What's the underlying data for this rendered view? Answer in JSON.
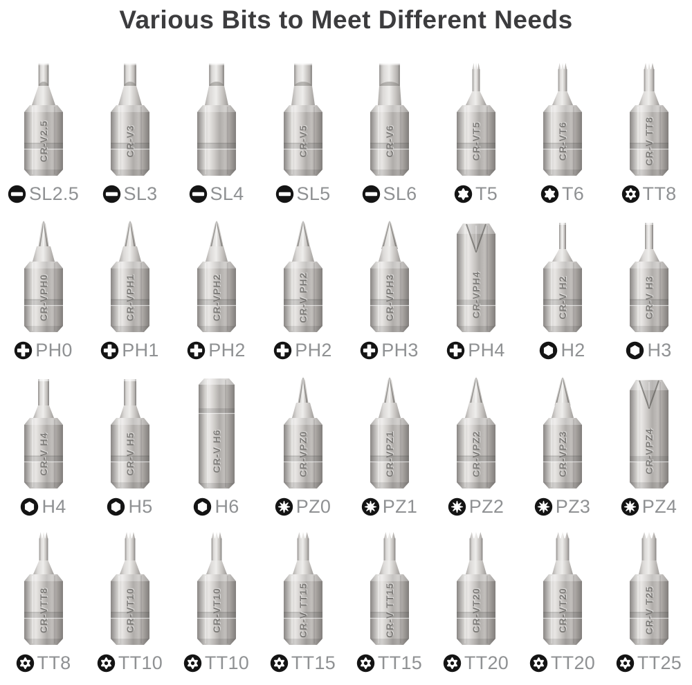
{
  "title": "Various Bits to Meet Different Needs",
  "colors": {
    "title_text": "#3c3c3e",
    "label_text": "#8f9193",
    "icon": "#141414",
    "metal_light": "#e9e7e5",
    "metal_mid": "#c2bfbc",
    "metal_dark": "#817e7b"
  },
  "rows": [
    [
      {
        "label": "SL2.5",
        "icon": "slotted",
        "tip": "slot",
        "size": 15,
        "fat": false,
        "marking": "CR-V2.5"
      },
      {
        "label": "SL3",
        "icon": "slotted",
        "tip": "slot",
        "size": 18,
        "fat": false,
        "marking": "CR-V3"
      },
      {
        "label": "SL4",
        "icon": "slotted",
        "tip": "slot",
        "size": 22,
        "fat": false,
        "marking": ""
      },
      {
        "label": "SL5",
        "icon": "slotted",
        "tip": "slot",
        "size": 26,
        "fat": false,
        "marking": "CR-V5"
      },
      {
        "label": "SL6",
        "icon": "slotted",
        "tip": "slot",
        "size": 30,
        "fat": false,
        "marking": "CR-V6"
      },
      {
        "label": "T5",
        "icon": "torx",
        "tip": "torx",
        "size": 11,
        "fat": false,
        "marking": "CR-VT5"
      },
      {
        "label": "T6",
        "icon": "torx",
        "tip": "torx",
        "size": 13,
        "fat": false,
        "marking": "CR-VT6"
      },
      {
        "label": "TT8",
        "icon": "torx_tamper",
        "tip": "torx",
        "size": 15,
        "fat": false,
        "marking": "CR-V TT8"
      }
    ],
    [
      {
        "label": "PH0",
        "icon": "phillips",
        "tip": "phillips",
        "size": 8,
        "fat": false,
        "marking": "CR-VPH0"
      },
      {
        "label": "PH1",
        "icon": "phillips",
        "tip": "phillips",
        "size": 9,
        "fat": false,
        "marking": "CR-VPH1"
      },
      {
        "label": "PH2",
        "icon": "phillips",
        "tip": "phillips",
        "size": 10.5,
        "fat": false,
        "marking": "CR-VPH2"
      },
      {
        "label": "PH2",
        "icon": "phillips",
        "tip": "phillips",
        "size": 10.5,
        "fat": false,
        "marking": "CR-V PH2"
      },
      {
        "label": "PH3",
        "icon": "phillips",
        "tip": "phillips",
        "size": 12,
        "fat": false,
        "marking": "CR-VPH3"
      },
      {
        "label": "PH4",
        "icon": "phillips",
        "tip": "phillips",
        "size": 13,
        "fat": true,
        "marking": "CR-VPH4"
      },
      {
        "label": "H2",
        "icon": "hex",
        "tip": "hex",
        "size": 10,
        "fat": false,
        "marking": "CR-V H2"
      },
      {
        "label": "H3",
        "icon": "hex",
        "tip": "hex",
        "size": 12,
        "fat": false,
        "marking": "CR-V H3"
      }
    ],
    [
      {
        "label": "H4",
        "icon": "hex",
        "tip": "hex",
        "size": 16,
        "fat": false,
        "marking": "CR-V H4"
      },
      {
        "label": "H5",
        "icon": "hex",
        "tip": "hex",
        "size": 18,
        "fat": false,
        "marking": "CR-V H5"
      },
      {
        "label": "H6",
        "icon": "hex",
        "tip": "hex",
        "size": 20,
        "fat": true,
        "marking": "CR-V H6"
      },
      {
        "label": "PZ0",
        "icon": "pozidriv",
        "tip": "pozi",
        "size": 8,
        "fat": false,
        "marking": "CR-VPZ0"
      },
      {
        "label": "PZ1",
        "icon": "pozidriv",
        "tip": "pozi",
        "size": 9,
        "fat": false,
        "marking": "CR-VPZ1"
      },
      {
        "label": "PZ2",
        "icon": "pozidriv",
        "tip": "pozi",
        "size": 10.5,
        "fat": false,
        "marking": "CR-VPZ2"
      },
      {
        "label": "PZ3",
        "icon": "pozidriv",
        "tip": "pozi",
        "size": 11.5,
        "fat": false,
        "marking": "CR-VPZ3"
      },
      {
        "label": "PZ4",
        "icon": "pozidriv",
        "tip": "pozi",
        "size": 13,
        "fat": true,
        "marking": "CR-VPZ4"
      }
    ],
    [
      {
        "label": "TT8",
        "icon": "torx_tamper",
        "tip": "torx",
        "size": 13,
        "fat": false,
        "marking": "CR-VTT8"
      },
      {
        "label": "TT10",
        "icon": "torx_tamper",
        "tip": "torx",
        "size": 15,
        "fat": false,
        "marking": "CR-VT10"
      },
      {
        "label": "TT10",
        "icon": "torx_tamper",
        "tip": "torx",
        "size": 15,
        "fat": false,
        "marking": "CR-VT10"
      },
      {
        "label": "TT15",
        "icon": "torx_tamper",
        "tip": "torx",
        "size": 17,
        "fat": false,
        "marking": "CR-V TT15"
      },
      {
        "label": "TT15",
        "icon": "torx_tamper",
        "tip": "torx",
        "size": 17,
        "fat": false,
        "marking": "CR-V TT15"
      },
      {
        "label": "TT20",
        "icon": "torx_tamper",
        "tip": "torx",
        "size": 19,
        "fat": false,
        "marking": "CR-VT20"
      },
      {
        "label": "TT20",
        "icon": "torx_tamper",
        "tip": "torx",
        "size": 19,
        "fat": false,
        "marking": "CR-VT20"
      },
      {
        "label": "TT25",
        "icon": "torx_tamper",
        "tip": "torx",
        "size": 21,
        "fat": false,
        "marking": "CR-V T25"
      }
    ]
  ]
}
